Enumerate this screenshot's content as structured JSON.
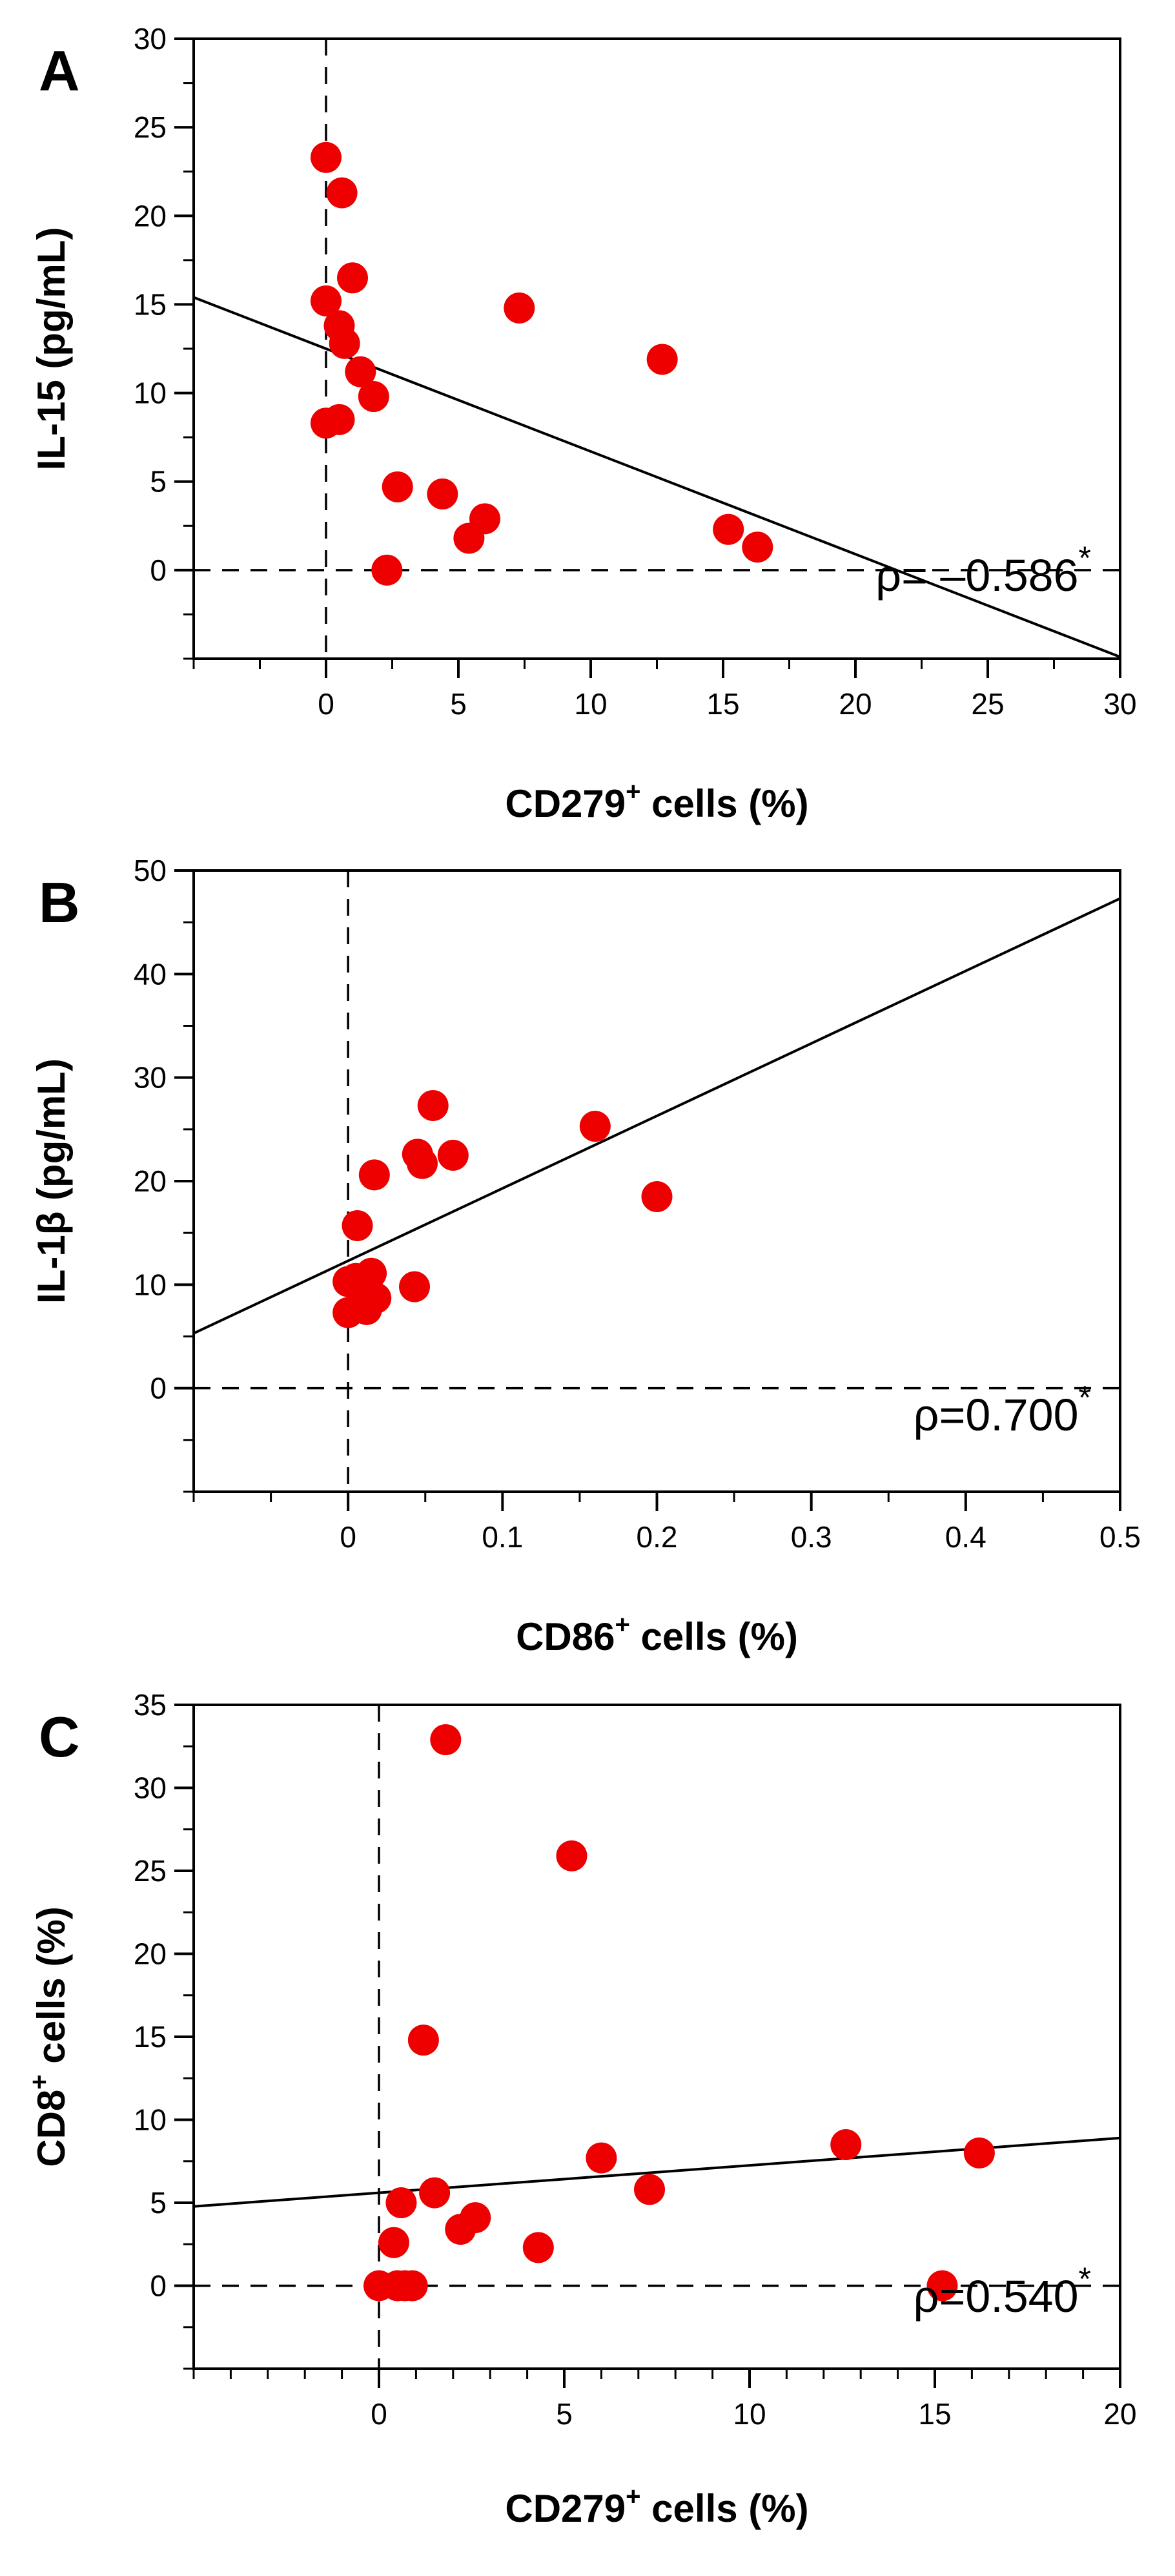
{
  "chart_data": [
    {
      "type": "scatter",
      "panel_label": "A",
      "xlabel": "CD279",
      "xlabel_sup": "+",
      "xlabel_suffix": " cells (%)",
      "ylabel": "IL-15 (pg/mL)",
      "ylabel_sup": "",
      "ylabel_suffix": "",
      "xlim": [
        -5,
        30
      ],
      "ylim": [
        -5,
        30
      ],
      "xticks": [
        0,
        5,
        10,
        15,
        20,
        25,
        30
      ],
      "yticks": [
        0,
        5,
        10,
        15,
        20,
        25,
        30
      ],
      "minor_x_step": 2.5,
      "minor_y_step": 2.5,
      "reference_lines": {
        "x": 0,
        "y": 0
      },
      "fit_line": {
        "slope": -0.58,
        "intercept": 12.5
      },
      "annotation": {
        "symbol": "ρ",
        "text": "= –0.586",
        "star": "*"
      },
      "points": [
        {
          "x": 0.0,
          "y": 23.3
        },
        {
          "x": 0.6,
          "y": 21.3
        },
        {
          "x": 1.0,
          "y": 16.5
        },
        {
          "x": 0.0,
          "y": 15.2
        },
        {
          "x": 0.5,
          "y": 13.8
        },
        {
          "x": 0.7,
          "y": 12.8
        },
        {
          "x": 1.3,
          "y": 11.2
        },
        {
          "x": 1.8,
          "y": 9.8
        },
        {
          "x": 0.0,
          "y": 8.3
        },
        {
          "x": 0.5,
          "y": 8.5
        },
        {
          "x": 2.7,
          "y": 4.7
        },
        {
          "x": 4.4,
          "y": 4.3
        },
        {
          "x": 6.0,
          "y": 2.9
        },
        {
          "x": 5.4,
          "y": 1.8
        },
        {
          "x": 2.3,
          "y": 0.0
        },
        {
          "x": 7.3,
          "y": 14.8
        },
        {
          "x": 12.7,
          "y": 11.9
        },
        {
          "x": 15.2,
          "y": 2.3
        },
        {
          "x": 16.3,
          "y": 1.3
        }
      ]
    },
    {
      "type": "scatter",
      "panel_label": "B",
      "xlabel": "CD86",
      "xlabel_sup": "+",
      "xlabel_suffix": " cells (%)",
      "ylabel": "IL-1β (pg/mL)",
      "ylabel_sup": "",
      "ylabel_suffix": "",
      "xlim": [
        -0.1,
        0.5
      ],
      "ylim": [
        -10,
        50
      ],
      "xticks": [
        0,
        0.1,
        0.2,
        0.3,
        0.4,
        0.5
      ],
      "yticks": [
        0,
        10,
        20,
        30,
        40,
        50
      ],
      "minor_x_step": 0.05,
      "minor_y_step": 5,
      "reference_lines": {
        "x": 0,
        "y": 0
      },
      "fit_line": {
        "slope": 70,
        "intercept": 12.3
      },
      "annotation": {
        "symbol": "ρ",
        "text": "=0.700",
        "star": "*"
      },
      "points": [
        {
          "x": 0.055,
          "y": 27.3
        },
        {
          "x": 0.16,
          "y": 25.3
        },
        {
          "x": 0.045,
          "y": 22.6
        },
        {
          "x": 0.048,
          "y": 21.7
        },
        {
          "x": 0.068,
          "y": 22.5
        },
        {
          "x": 0.017,
          "y": 20.6
        },
        {
          "x": 0.2,
          "y": 18.5
        },
        {
          "x": 0.006,
          "y": 15.7
        },
        {
          "x": 0.0,
          "y": 10.3
        },
        {
          "x": 0.005,
          "y": 10.6
        },
        {
          "x": 0.015,
          "y": 11.1
        },
        {
          "x": 0.012,
          "y": 10.0
        },
        {
          "x": 0.043,
          "y": 9.8
        },
        {
          "x": 0.01,
          "y": 9.0
        },
        {
          "x": 0.018,
          "y": 8.7
        },
        {
          "x": 0.0,
          "y": 7.3
        },
        {
          "x": 0.012,
          "y": 7.6
        }
      ]
    },
    {
      "type": "scatter",
      "panel_label": "C",
      "xlabel": "CD279",
      "xlabel_sup": "+",
      "xlabel_suffix": " cells (%)",
      "ylabel": "CD8",
      "ylabel_sup": "+",
      "ylabel_suffix": " cells (%)",
      "xlim": [
        -5,
        20
      ],
      "ylim": [
        -5,
        35
      ],
      "xticks": [
        0,
        5,
        10,
        15,
        20
      ],
      "yticks": [
        0,
        5,
        10,
        15,
        20,
        25,
        30,
        35
      ],
      "minor_x_step": 1,
      "minor_y_step": 2.5,
      "reference_lines": {
        "x": 0,
        "y": 0
      },
      "fit_line": {
        "slope": 0.165,
        "intercept": 5.6
      },
      "annotation": {
        "symbol": "ρ",
        "text": "=0.540",
        "star": "*"
      },
      "points": [
        {
          "x": 1.8,
          "y": 32.9
        },
        {
          "x": 5.2,
          "y": 25.9
        },
        {
          "x": 1.2,
          "y": 14.8
        },
        {
          "x": 12.6,
          "y": 8.5
        },
        {
          "x": 16.2,
          "y": 8.0
        },
        {
          "x": 6.0,
          "y": 7.7
        },
        {
          "x": 7.3,
          "y": 5.8
        },
        {
          "x": 1.5,
          "y": 5.6
        },
        {
          "x": 0.6,
          "y": 5.0
        },
        {
          "x": 2.6,
          "y": 4.1
        },
        {
          "x": 2.2,
          "y": 3.4
        },
        {
          "x": 0.4,
          "y": 2.6
        },
        {
          "x": 4.3,
          "y": 2.3
        },
        {
          "x": 0.0,
          "y": 0.0
        },
        {
          "x": 0.5,
          "y": 0.0
        },
        {
          "x": 0.7,
          "y": 0.0
        },
        {
          "x": 0.9,
          "y": 0.0
        },
        {
          "x": 15.2,
          "y": 0.0
        }
      ]
    }
  ],
  "colors": {
    "point": "#ee0000",
    "axis": "#000000",
    "fit_line": "#000000"
  }
}
